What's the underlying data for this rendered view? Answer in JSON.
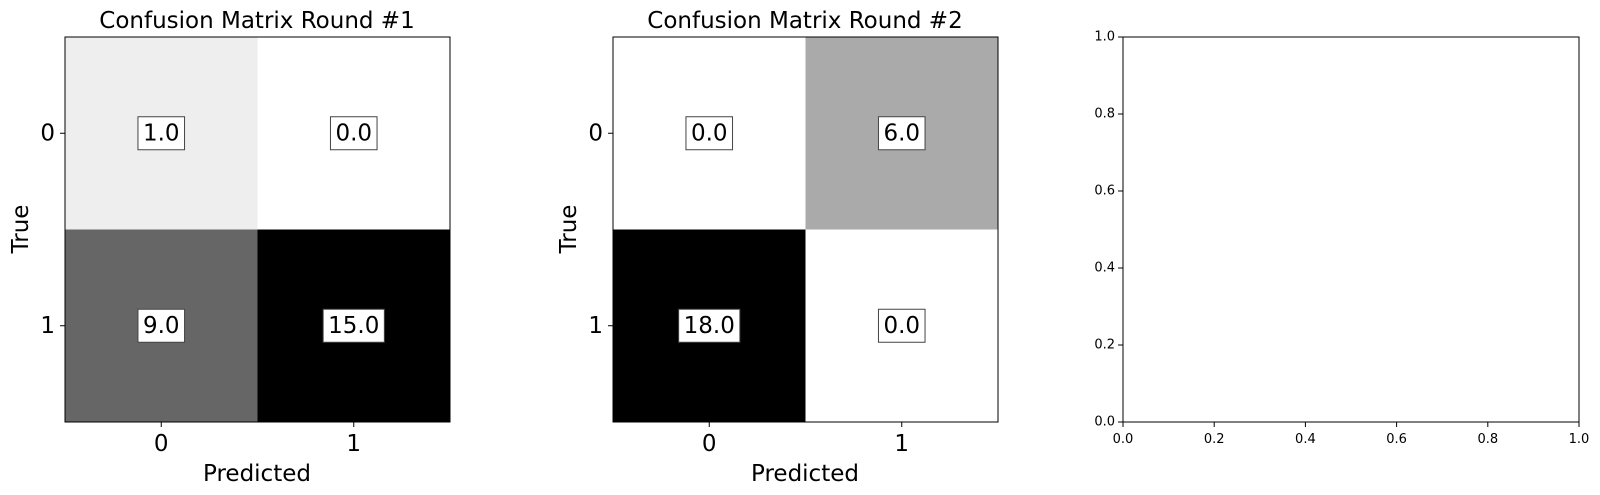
{
  "chart_data": [
    {
      "type": "heatmap",
      "title": "Confusion Matrix Round #1",
      "xlabel": "Predicted",
      "ylabel": "True",
      "x_categories": [
        "0",
        "1"
      ],
      "y_categories": [
        "0",
        "1"
      ],
      "values": [
        [
          1.0,
          0.0
        ],
        [
          9.0,
          15.0
        ]
      ],
      "cell_labels": [
        [
          "1.0",
          "0.0"
        ],
        [
          "9.0",
          "15.0"
        ]
      ],
      "colormap": "greys",
      "color_min": 0,
      "color_max": 15
    },
    {
      "type": "heatmap",
      "title": "Confusion Matrix Round #2",
      "xlabel": "Predicted",
      "ylabel": "True",
      "x_categories": [
        "0",
        "1"
      ],
      "y_categories": [
        "0",
        "1"
      ],
      "values": [
        [
          0.0,
          6.0
        ],
        [
          18.0,
          0.0
        ]
      ],
      "cell_labels": [
        [
          "0.0",
          "6.0"
        ],
        [
          "18.0",
          "0.0"
        ]
      ],
      "colormap": "greys",
      "color_min": 0,
      "color_max": 18
    },
    {
      "type": "scatter",
      "title": "",
      "xlabel": "",
      "ylabel": "",
      "xlim": [
        0,
        1
      ],
      "ylim": [
        0,
        1
      ],
      "x_ticks": [
        "0.0",
        "0.2",
        "0.4",
        "0.6",
        "0.8",
        "1.0"
      ],
      "y_ticks": [
        "0.0",
        "0.2",
        "0.4",
        "0.6",
        "0.8",
        "1.0"
      ],
      "series": []
    }
  ]
}
